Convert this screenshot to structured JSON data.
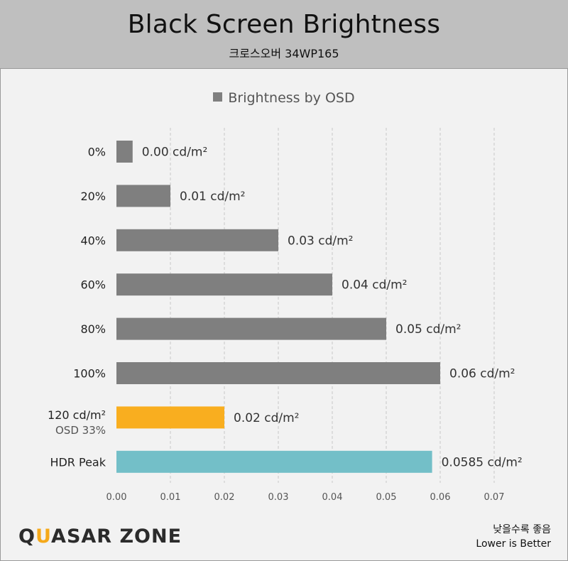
{
  "header": {
    "title": "Black Screen Brightness",
    "subtitle": "크로스오버 34WP165"
  },
  "legend": {
    "label": "Brightness by OSD"
  },
  "footer": {
    "logo_text_1": "Q",
    "logo_text_accent": "U",
    "logo_text_2": "ASAR ZONE",
    "note_korean": "낮을수록 좋음",
    "note_english": "Lower is Better"
  },
  "colors": {
    "default_bar": "#7f7f7f",
    "highlight_bar": "#f9ae1f",
    "hdr_bar": "#73bfc8",
    "grid": "#c8c8c8",
    "background": "#f2f2f2"
  },
  "chart_data": {
    "type": "bar",
    "orientation": "horizontal",
    "title": "Black Screen Brightness",
    "subtitle": "크로스오버 34WP165",
    "xlim": [
      0,
      0.07
    ],
    "x_ticks": [
      "0.00",
      "0.01",
      "0.02",
      "0.03",
      "0.04",
      "0.05",
      "0.06",
      "0.07"
    ],
    "grid": "vertical dashed",
    "legend_position": "top-center",
    "series": [
      {
        "name": "Brightness by OSD",
        "points": [
          {
            "category": "0%",
            "sub": "",
            "value": 0.003,
            "label": "0.00 cd/m²",
            "color": "#7f7f7f"
          },
          {
            "category": "20%",
            "sub": "",
            "value": 0.01,
            "label": "0.01 cd/m²",
            "color": "#7f7f7f"
          },
          {
            "category": "40%",
            "sub": "",
            "value": 0.03,
            "label": "0.03 cd/m²",
            "color": "#7f7f7f"
          },
          {
            "category": "60%",
            "sub": "",
            "value": 0.04,
            "label": "0.04 cd/m²",
            "color": "#7f7f7f"
          },
          {
            "category": "80%",
            "sub": "",
            "value": 0.05,
            "label": "0.05 cd/m²",
            "color": "#7f7f7f"
          },
          {
            "category": "100%",
            "sub": "",
            "value": 0.06,
            "label": "0.06 cd/m²",
            "color": "#7f7f7f"
          },
          {
            "category": "120 cd/m²",
            "sub": "OSD 33%",
            "value": 0.02,
            "label": "0.02 cd/m²",
            "color": "#f9ae1f"
          },
          {
            "category": "HDR Peak",
            "sub": "",
            "value": 0.0585,
            "label": "0.0585 cd/m²",
            "color": "#73bfc8"
          }
        ]
      }
    ]
  }
}
